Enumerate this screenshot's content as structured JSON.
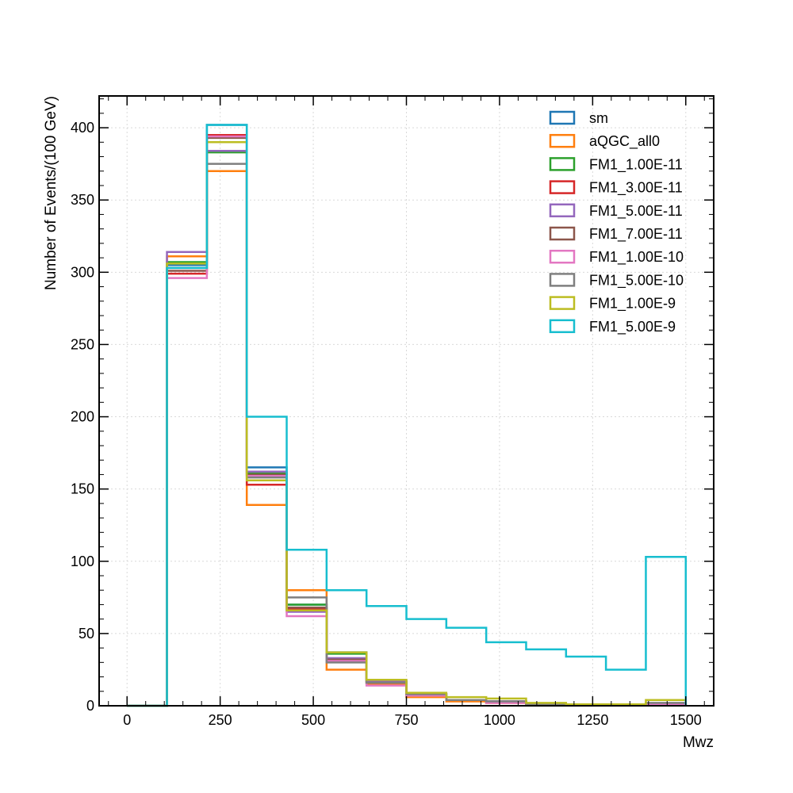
{
  "chart_data": {
    "type": "step-histogram",
    "xlabel": "Mwz",
    "ylabel": "Number of Events/(100 GeV)",
    "xlim": [
      -75,
      1575
    ],
    "ylim": [
      0,
      422
    ],
    "xticks": [
      0,
      250,
      500,
      750,
      1000,
      1250,
      1500
    ],
    "yticks": [
      0,
      50,
      100,
      150,
      200,
      250,
      300,
      350,
      400
    ],
    "grid": true,
    "legend_position": "top-right",
    "bin_edges": [
      0,
      107.14,
      214.29,
      321.43,
      428.57,
      535.71,
      642.86,
      750,
      857.14,
      964.29,
      1071.43,
      1178.57,
      1285.71,
      1392.86,
      1500
    ],
    "series": [
      {
        "name": "sm",
        "color": "#1f77b4",
        "values": [
          0,
          305,
          402,
          165,
          70,
          37,
          17,
          8,
          4,
          3,
          1,
          0.5,
          0.5,
          1
        ]
      },
      {
        "name": "aQGC_all0",
        "color": "#ff7f0e",
        "values": [
          0,
          311,
          370,
          139,
          80,
          25,
          15,
          6,
          3,
          2,
          1,
          0.5,
          0.5,
          1
        ]
      },
      {
        "name": "FM1_1.00E-11",
        "color": "#2ca02c",
        "values": [
          0,
          307,
          383,
          161,
          70,
          36,
          17,
          8,
          4,
          3,
          1,
          0.5,
          0.5,
          1
        ]
      },
      {
        "name": "FM1_3.00E-11",
        "color": "#d62728",
        "values": [
          0,
          299,
          395,
          153,
          67,
          32,
          16,
          8,
          4,
          2,
          1,
          0.5,
          0.5,
          1
        ]
      },
      {
        "name": "FM1_5.00E-11",
        "color": "#9467bd",
        "values": [
          0,
          314,
          384,
          162,
          65,
          33,
          17,
          8,
          4,
          3,
          1,
          0.5,
          0.5,
          1
        ]
      },
      {
        "name": "FM1_7.00E-11",
        "color": "#8c564b",
        "values": [
          0,
          301,
          393,
          160,
          68,
          32,
          16,
          8,
          4,
          3,
          1,
          0.5,
          0.5,
          1
        ]
      },
      {
        "name": "FM1_1.00E-10",
        "color": "#e377c2",
        "values": [
          0,
          296,
          394,
          159,
          62,
          31,
          14,
          7,
          4,
          2,
          1,
          0.5,
          0.5,
          1
        ]
      },
      {
        "name": "FM1_5.00E-10",
        "color": "#7f7f7f",
        "values": [
          0,
          303,
          375,
          158,
          75,
          30,
          16,
          8,
          4,
          3,
          1,
          0.5,
          0.5,
          2
        ]
      },
      {
        "name": "FM1_1.00E-9",
        "color": "#bcbd22",
        "values": [
          0,
          306,
          390,
          156,
          66,
          37,
          18,
          9,
          6,
          5,
          2,
          1,
          1,
          4
        ]
      },
      {
        "name": "FM1_5.00E-9",
        "color": "#17becf",
        "values": [
          0,
          303,
          402,
          200,
          108,
          80,
          69,
          60,
          54,
          44,
          39,
          34,
          25,
          103
        ]
      }
    ]
  }
}
